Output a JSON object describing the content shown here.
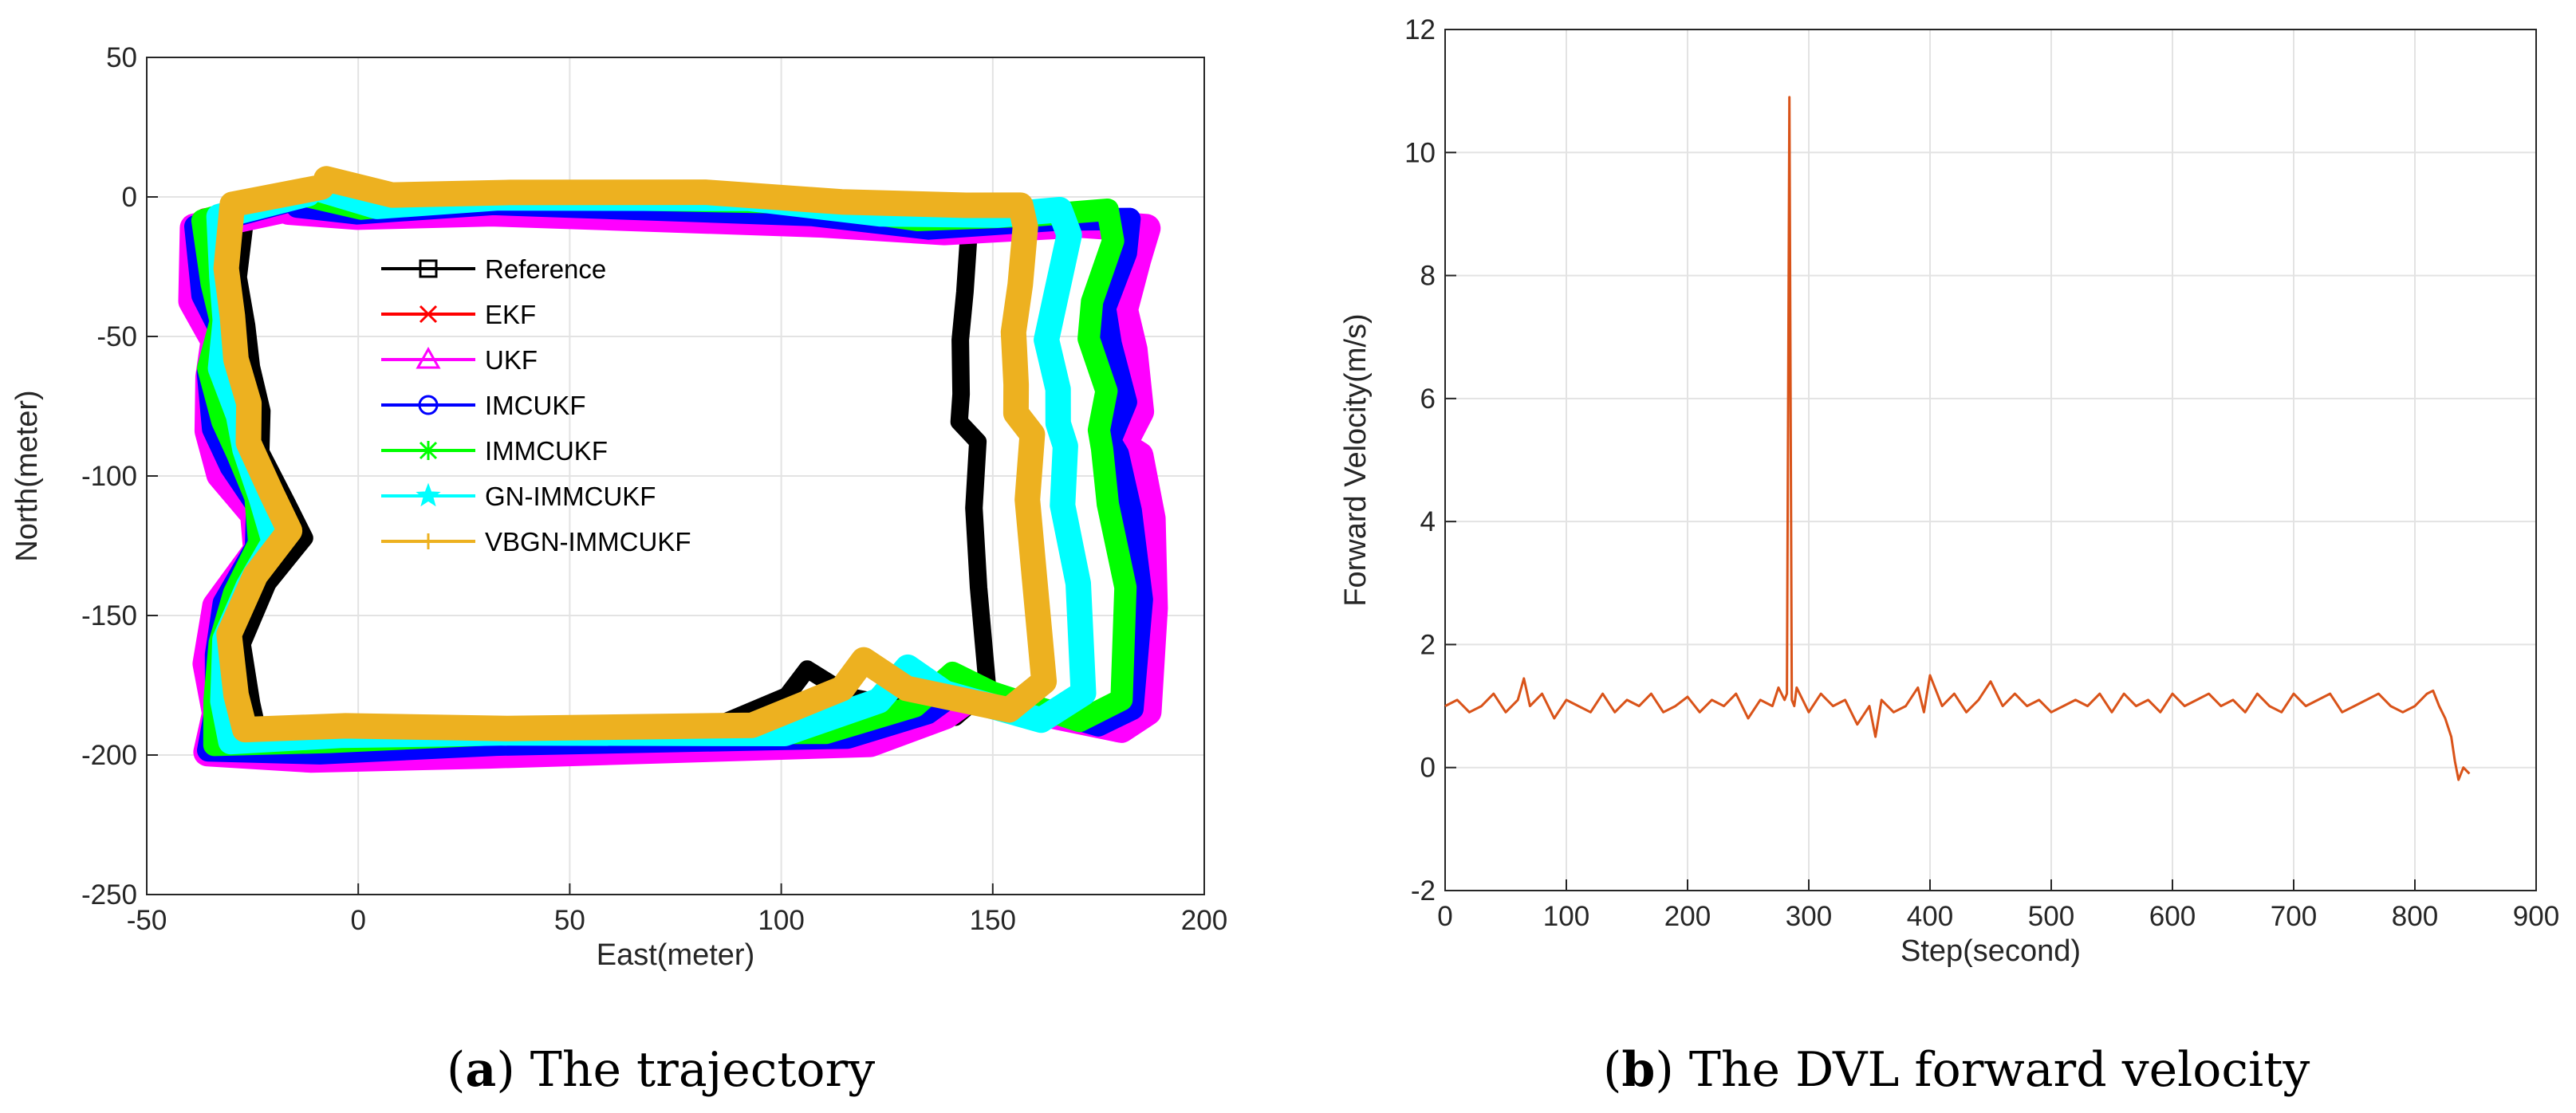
{
  "chart_data": [
    {
      "type": "line",
      "caption_label": "a",
      "caption_text": "The trajectory",
      "xlabel": "East(meter)",
      "ylabel": "North(meter)",
      "xlim": [
        -50,
        200
      ],
      "ylim": [
        -250,
        50
      ],
      "xticks": [
        -50,
        0,
        50,
        100,
        150,
        200
      ],
      "yticks": [
        -250,
        -200,
        -150,
        -100,
        -50,
        0,
        50
      ],
      "grid": true,
      "legend_position": "inside-center-left",
      "reference_path": [
        [
          -5,
          2
        ],
        [
          -28,
          -6
        ],
        [
          -28,
          -30
        ],
        [
          -25,
          -45
        ],
        [
          -26,
          -60
        ],
        [
          -24,
          -78
        ],
        [
          -22,
          -92
        ],
        [
          -16,
          -108
        ],
        [
          -14,
          -122
        ],
        [
          -22,
          -140
        ],
        [
          -26,
          -160
        ],
        [
          -25,
          -180
        ],
        [
          -25,
          -194
        ],
        [
          0,
          -194
        ],
        [
          40,
          -193
        ],
        [
          80,
          -191
        ],
        [
          100,
          -180
        ],
        [
          107,
          -170
        ],
        [
          118,
          -178
        ],
        [
          140,
          -186
        ],
        [
          148,
          -178
        ],
        [
          148,
          -140
        ],
        [
          146,
          -110
        ],
        [
          145,
          -88
        ],
        [
          142,
          -82
        ],
        [
          144,
          -70
        ],
        [
          142,
          -50
        ],
        [
          142,
          -35
        ],
        [
          145,
          -15
        ],
        [
          145,
          -5
        ],
        [
          130,
          -5
        ],
        [
          100,
          -6
        ],
        [
          70,
          -2
        ],
        [
          40,
          0
        ],
        [
          10,
          -2
        ],
        [
          -5,
          2
        ]
      ],
      "series": [
        {
          "name": "Reference",
          "color": "#000000",
          "marker": "square",
          "offset": [
            0,
            0
          ],
          "width": 0
        },
        {
          "name": "EKF",
          "color": "#ff0000",
          "marker": "x",
          "offset": [
            36,
            -3
          ],
          "width": 12
        },
        {
          "name": "UKF",
          "color": "#ff00ff",
          "marker": "triangle",
          "offset": [
            40,
            -6
          ],
          "width": 18
        },
        {
          "name": "IMCUKF",
          "color": "#0000ff",
          "marker": "circle",
          "offset": [
            36,
            -4
          ],
          "width": 14
        },
        {
          "name": "IMMCUKF",
          "color": "#00ff00",
          "marker": "asterisk",
          "offset": [
            32,
            -1
          ],
          "width": 14
        },
        {
          "name": "GN-IMMCUKF",
          "color": "#00ffff",
          "marker": "star",
          "offset": [
            22,
            0
          ],
          "width": 16
        },
        {
          "name": "VBGN-IMMCUKF",
          "color": "#edb120",
          "marker": "plus",
          "offset": [
            13,
            3
          ],
          "width": 16
        }
      ]
    },
    {
      "type": "line",
      "caption_label": "b",
      "caption_text": "The DVL forward velocity",
      "xlabel": "Step(second)",
      "ylabel": "Forward Velocity(m/s)",
      "xlim": [
        0,
        900
      ],
      "ylim": [
        -2,
        12
      ],
      "xticks": [
        0,
        100,
        200,
        300,
        400,
        500,
        600,
        700,
        800,
        900
      ],
      "yticks": [
        -2,
        0,
        2,
        4,
        6,
        8,
        10,
        12
      ],
      "grid": true,
      "series": [
        {
          "name": "Forward velocity",
          "color": "#d95319",
          "x": [
            0,
            10,
            20,
            30,
            40,
            50,
            60,
            65,
            70,
            80,
            90,
            100,
            110,
            120,
            130,
            140,
            150,
            160,
            170,
            180,
            190,
            200,
            210,
            220,
            230,
            240,
            250,
            260,
            270,
            275,
            280,
            282,
            284,
            286,
            288,
            290,
            300,
            310,
            320,
            330,
            340,
            350,
            355,
            360,
            370,
            380,
            390,
            395,
            400,
            410,
            420,
            430,
            440,
            450,
            460,
            470,
            480,
            490,
            500,
            510,
            520,
            530,
            540,
            550,
            560,
            570,
            580,
            590,
            600,
            610,
            620,
            630,
            640,
            650,
            660,
            670,
            680,
            690,
            700,
            710,
            720,
            730,
            740,
            750,
            760,
            770,
            780,
            790,
            800,
            810,
            815,
            820,
            825,
            830,
            833,
            836,
            840,
            845
          ],
          "values": [
            1.0,
            1.1,
            0.9,
            1.0,
            1.2,
            0.9,
            1.1,
            1.45,
            1.0,
            1.2,
            0.8,
            1.1,
            1.0,
            0.9,
            1.2,
            0.9,
            1.1,
            1.0,
            1.2,
            0.9,
            1.0,
            1.15,
            0.9,
            1.1,
            1.0,
            1.2,
            0.8,
            1.1,
            1.0,
            1.3,
            1.1,
            1.2,
            10.9,
            1.1,
            1.0,
            1.3,
            0.9,
            1.2,
            1.0,
            1.1,
            0.7,
            1.0,
            0.5,
            1.1,
            0.9,
            1.0,
            1.3,
            0.9,
            1.5,
            1.0,
            1.2,
            0.9,
            1.1,
            1.4,
            1.0,
            1.2,
            1.0,
            1.1,
            0.9,
            1.0,
            1.1,
            1.0,
            1.2,
            0.9,
            1.2,
            1.0,
            1.1,
            0.9,
            1.2,
            1.0,
            1.1,
            1.2,
            1.0,
            1.1,
            0.9,
            1.2,
            1.0,
            0.9,
            1.2,
            1.0,
            1.1,
            1.2,
            0.9,
            1.0,
            1.1,
            1.2,
            1.0,
            0.9,
            1.0,
            1.2,
            1.25,
            1.0,
            0.8,
            0.5,
            0.1,
            -0.2,
            0.0,
            -0.1
          ]
        }
      ]
    }
  ]
}
